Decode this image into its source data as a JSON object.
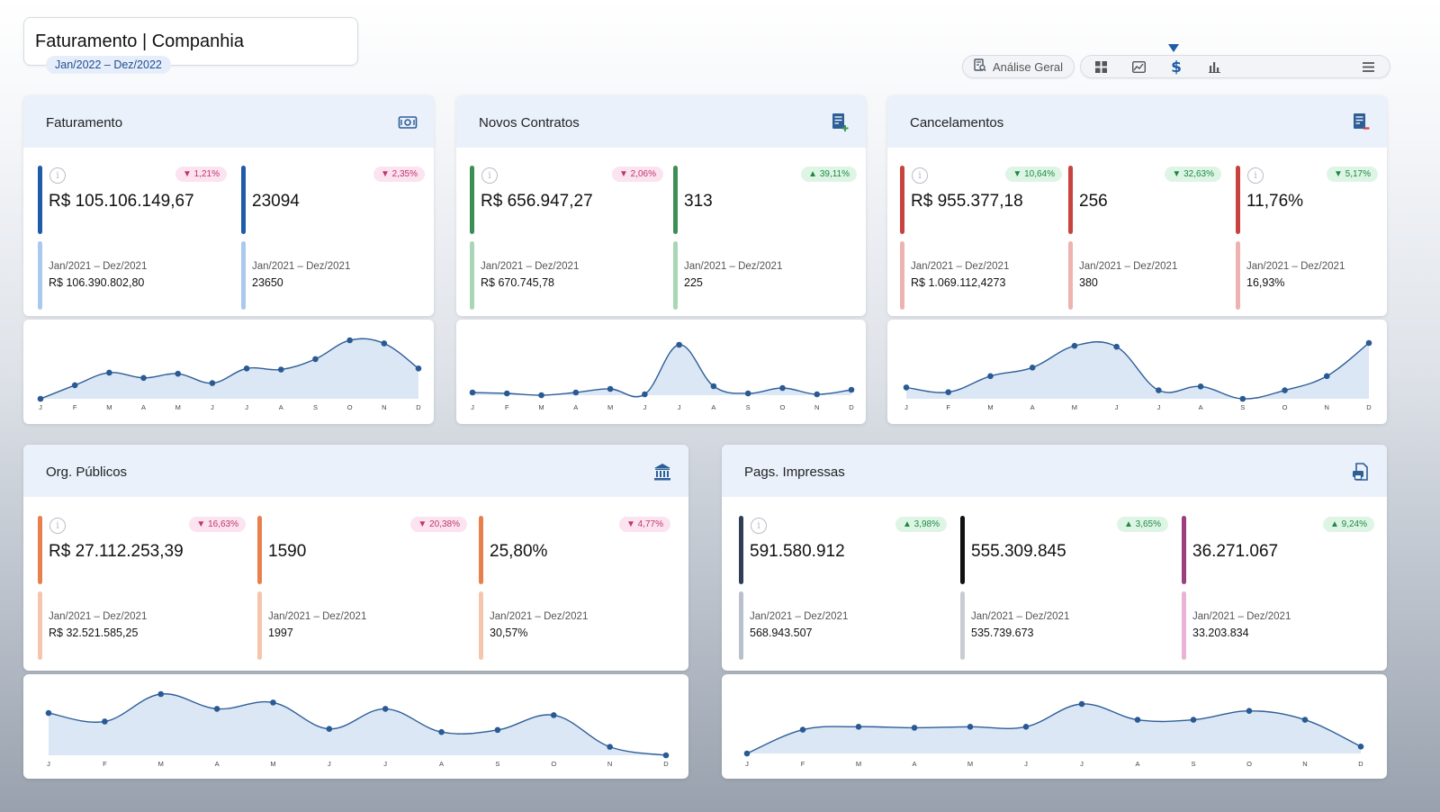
{
  "header": {
    "title": "Faturamento | Companhia",
    "period": "Jan/2022 – Dez/2022"
  },
  "toolbar": {
    "analysis_label": "Análise Geral",
    "icons": [
      "grid-icon",
      "image-chart-icon",
      "dollar-icon",
      "bar-chart-icon",
      "menu-icon"
    ],
    "active_icon": "dollar-icon"
  },
  "colors": {
    "header_bg": "#eaf1fb",
    "line": "#2e5e97",
    "area": "#dbe7f5",
    "badge_down": "#c2346f",
    "badge_up": "#1d8a43"
  },
  "months": [
    "J",
    "F",
    "M",
    "A",
    "M",
    "J",
    "J",
    "A",
    "S",
    "O",
    "N",
    "D"
  ],
  "cards": [
    {
      "title": "Faturamento",
      "icon": "cash-icon",
      "kpis": [
        {
          "value": "R$ 105.106.149,67",
          "badge": "▼ 1,21%",
          "trend": "down",
          "prev_label": "Jan/2021 – Dez/2021",
          "prev_value": "R$ 106.390.802,80",
          "color": "#1f5ba8",
          "color_light": "#a9c9ee",
          "info": true
        },
        {
          "value": "23094",
          "badge": "▼ 2,35%",
          "trend": "down",
          "prev_label": "Jan/2021 – Dez/2021",
          "prev_value": "23650",
          "color": "#1f5ba8",
          "color_light": "#a9c9ee",
          "info": false
        }
      ],
      "chart_data": {
        "type": "area",
        "x": [
          "J",
          "F",
          "M",
          "A",
          "M",
          "J",
          "J",
          "A",
          "S",
          "O",
          "N",
          "D"
        ],
        "values": [
          0,
          13,
          25,
          20,
          24,
          15,
          29,
          28,
          38,
          56,
          53,
          29
        ]
      }
    },
    {
      "title": "Novos Contratos",
      "icon": "contract-add-icon",
      "kpis": [
        {
          "value": "R$ 656.947,27",
          "badge": "▼ 2,06%",
          "trend": "down",
          "prev_label": "Jan/2021 – Dez/2021",
          "prev_value": "R$ 670.745,78",
          "color": "#3d8f56",
          "color_light": "#a9d6b5",
          "info": true
        },
        {
          "value": "313",
          "badge": "▲ 39,11%",
          "trend": "up",
          "prev_label": "Jan/2021 – Dez/2021",
          "prev_value": "225",
          "color": "#3d8f56",
          "color_light": "#a9d6b5",
          "info": false
        }
      ],
      "chart_data": {
        "type": "area",
        "x": [
          "J",
          "F",
          "M",
          "A",
          "M",
          "J",
          "J",
          "A",
          "S",
          "O",
          "N",
          "D"
        ],
        "values": [
          5,
          4,
          2,
          5,
          9,
          3,
          58,
          12,
          4,
          10,
          3,
          8
        ]
      }
    },
    {
      "title": "Cancelamentos",
      "icon": "contract-remove-icon",
      "kpis": [
        {
          "value": "R$ 955.377,18",
          "badge": "▼ 10,64%",
          "trend": "up",
          "prev_label": "Jan/2021 – Dez/2021",
          "prev_value": "R$ 1.069.112,4273",
          "color": "#c8433f",
          "color_light": "#eeb3b0",
          "info": true
        },
        {
          "value": "256",
          "badge": "▼ 32,63%",
          "trend": "up",
          "prev_label": "Jan/2021 – Dez/2021",
          "prev_value": "380",
          "color": "#c8433f",
          "color_light": "#eeb3b0",
          "info": false
        },
        {
          "value": "11,76%",
          "badge": "▼ 5,17%",
          "trend": "up",
          "prev_label": "Jan/2021 – Dez/2021",
          "prev_value": "16,93%",
          "color": "#c8433f",
          "color_light": "#eeb3b0",
          "info": true
        }
      ],
      "chart_data": {
        "type": "area",
        "x": [
          "J",
          "F",
          "M",
          "A",
          "M",
          "J",
          "J",
          "A",
          "S",
          "O",
          "N",
          "D"
        ],
        "values": [
          17,
          12,
          29,
          38,
          61,
          60,
          14,
          18,
          5,
          14,
          29,
          64
        ]
      }
    },
    {
      "title": "Org. Públicos",
      "icon": "institution-icon",
      "kpis": [
        {
          "value": "R$ 27.112.253,39",
          "badge": "▼ 16,63%",
          "trend": "down",
          "prev_label": "Jan/2021 – Dez/2021",
          "prev_value": "R$ 32.521.585,25",
          "color": "#e8804d",
          "color_light": "#f5c6ad",
          "info": true
        },
        {
          "value": "1590",
          "badge": "▼ 20,38%",
          "trend": "down",
          "prev_label": "Jan/2021 – Dez/2021",
          "prev_value": "1997",
          "color": "#e8804d",
          "color_light": "#f5c6ad",
          "info": false
        },
        {
          "value": "25,80%",
          "badge": "▼ 4,77%",
          "trend": "down",
          "prev_label": "Jan/2021 – Dez/2021",
          "prev_value": "30,57%",
          "color": "#e8804d",
          "color_light": "#f5c6ad",
          "info": false
        }
      ],
      "chart_data": {
        "type": "area",
        "x": [
          "J",
          "F",
          "M",
          "A",
          "M",
          "J",
          "J",
          "A",
          "S",
          "O",
          "N",
          "D"
        ],
        "values": [
          40,
          32,
          58,
          44,
          50,
          25,
          44,
          22,
          24,
          38,
          8,
          0
        ]
      }
    },
    {
      "title": "Pags. Impressas",
      "icon": "printer-icon",
      "kpis": [
        {
          "value": "591.580.912",
          "badge": "▲ 3,98%",
          "trend": "up",
          "prev_label": "Jan/2021 – Dez/2021",
          "prev_value": "568.943.507",
          "color": "#2f3e55",
          "color_light": "#b9c0cc",
          "info": true
        },
        {
          "value": "555.309.845",
          "badge": "▲ 3,65%",
          "trend": "up",
          "prev_label": "Jan/2021 – Dez/2021",
          "prev_value": "535.739.673",
          "color": "#111111",
          "color_light": "#c9cdd3",
          "info": false
        },
        {
          "value": "36.271.067",
          "badge": "▲ 9,24%",
          "trend": "up",
          "prev_label": "Jan/2021 – Dez/2021",
          "prev_value": "33.203.834",
          "color": "#9b3f7e",
          "color_light": "#e8b4d6",
          "info": false
        }
      ],
      "chart_data": {
        "type": "area",
        "x": [
          "J",
          "F",
          "M",
          "A",
          "M",
          "J",
          "J",
          "A",
          "S",
          "O",
          "N",
          "D"
        ],
        "values": [
          0,
          24,
          27,
          26,
          27,
          27,
          50,
          34,
          34,
          43,
          34,
          7
        ]
      }
    }
  ]
}
